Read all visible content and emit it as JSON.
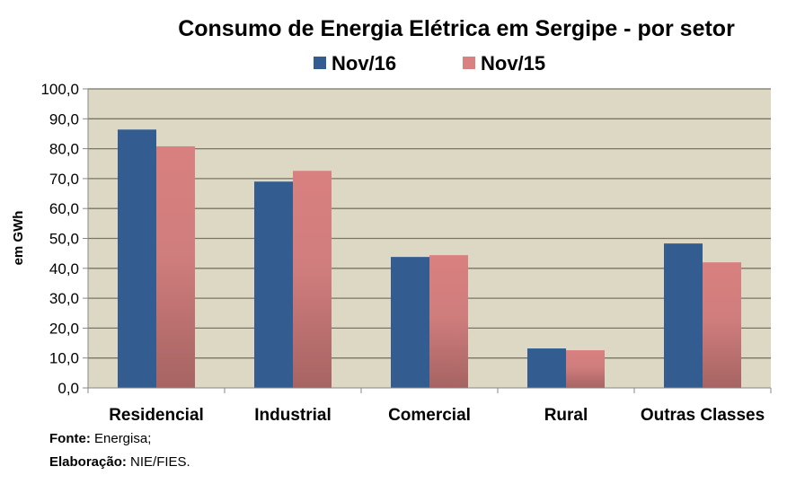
{
  "chart_data": {
    "type": "bar",
    "title": "Consumo de Energia Elétrica em Sergipe - por setor",
    "xlabel": "",
    "ylabel": "em GWh",
    "ylim": [
      0,
      100
    ],
    "yticks": [
      0,
      10,
      20,
      30,
      40,
      50,
      60,
      70,
      80,
      90,
      100
    ],
    "ytick_labels": [
      "0,0",
      "10,0",
      "20,0",
      "30,0",
      "40,0",
      "50,0",
      "60,0",
      "70,0",
      "80,0",
      "90,0",
      "100,0"
    ],
    "grid": true,
    "legend_position": "top-center",
    "categories": [
      "Residencial",
      "Industrial",
      "Comercial",
      "Rural",
      "Outras Classes"
    ],
    "series": [
      {
        "name": "Nov/16",
        "color": "#335C91",
        "values": [
          86.4,
          69.0,
          43.8,
          13.2,
          48.3
        ]
      },
      {
        "name": "Nov/15",
        "color": "#D98080",
        "values": [
          80.8,
          72.6,
          44.4,
          12.6,
          42.0
        ]
      }
    ],
    "plot_background": "#DDD8C4"
  },
  "footer": {
    "source_label": "Fonte:",
    "source_value": "Energisa;",
    "credit_label": "Elaboração:",
    "credit_value": "NIE/FIES."
  }
}
